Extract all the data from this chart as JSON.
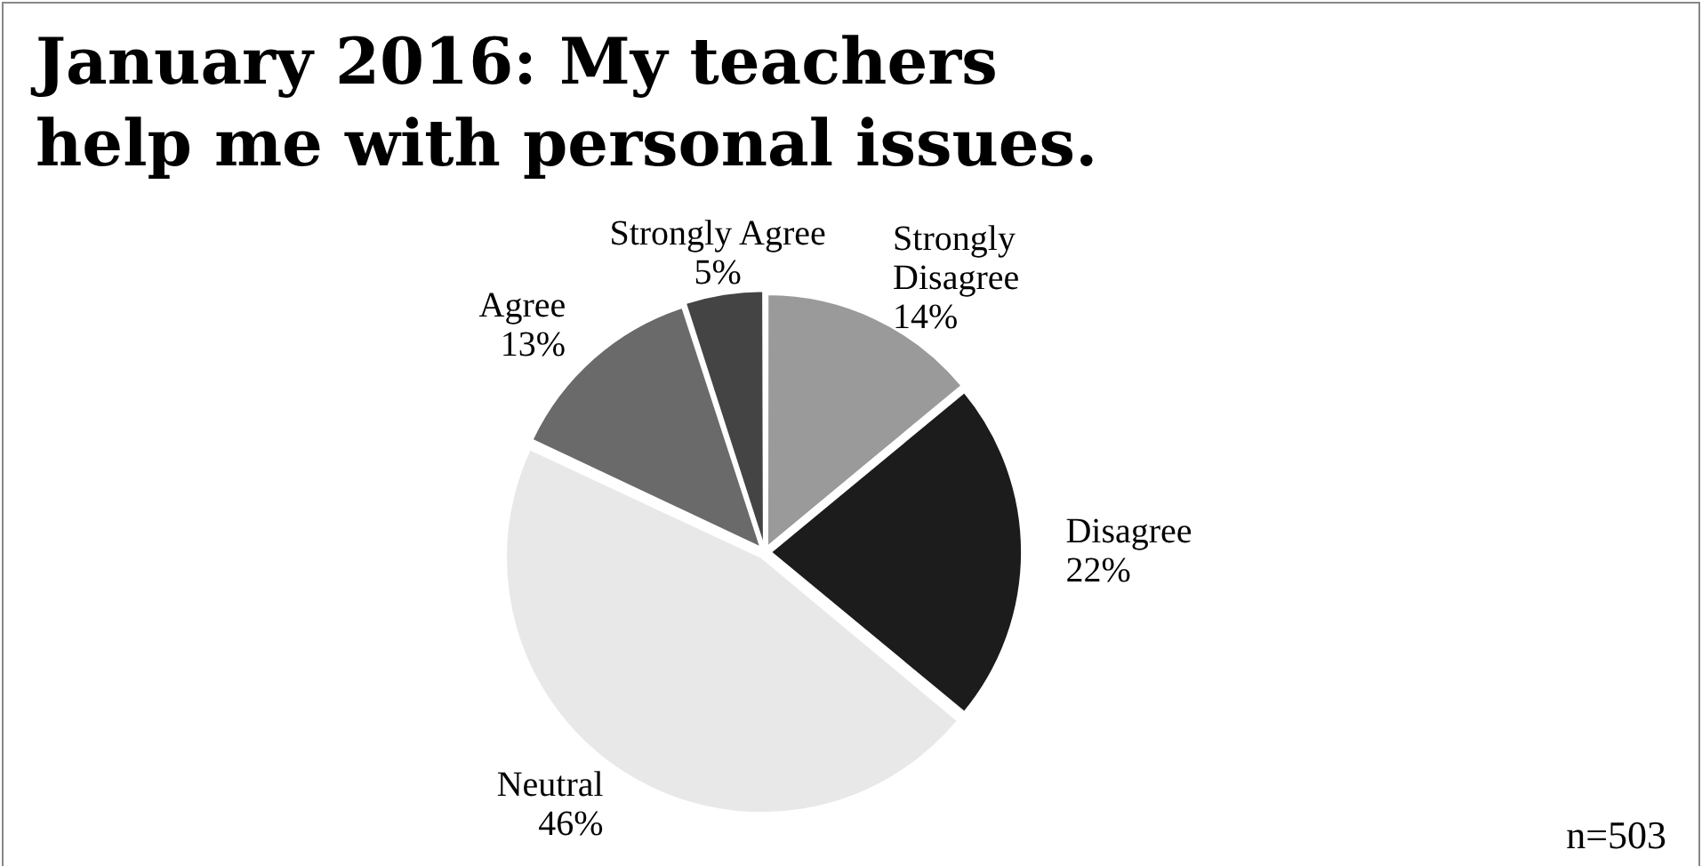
{
  "chart_data": {
    "type": "pie",
    "title": "January 2016: My teachers help me with personal issues.",
    "categories": [
      "Strongly Disagree",
      "Disagree",
      "Neutral",
      "Agree",
      "Strongly Agree"
    ],
    "values": [
      14,
      22,
      46,
      13,
      5
    ],
    "value_labels": [
      "14%",
      "22%",
      "46%",
      "13%",
      "5%"
    ],
    "colors": [
      "#9a9a9a",
      "#1c1c1c",
      "#e8e8e8",
      "#6a6a6a",
      "#444444"
    ],
    "legend": false,
    "annotations": [
      "n=503"
    ]
  }
}
